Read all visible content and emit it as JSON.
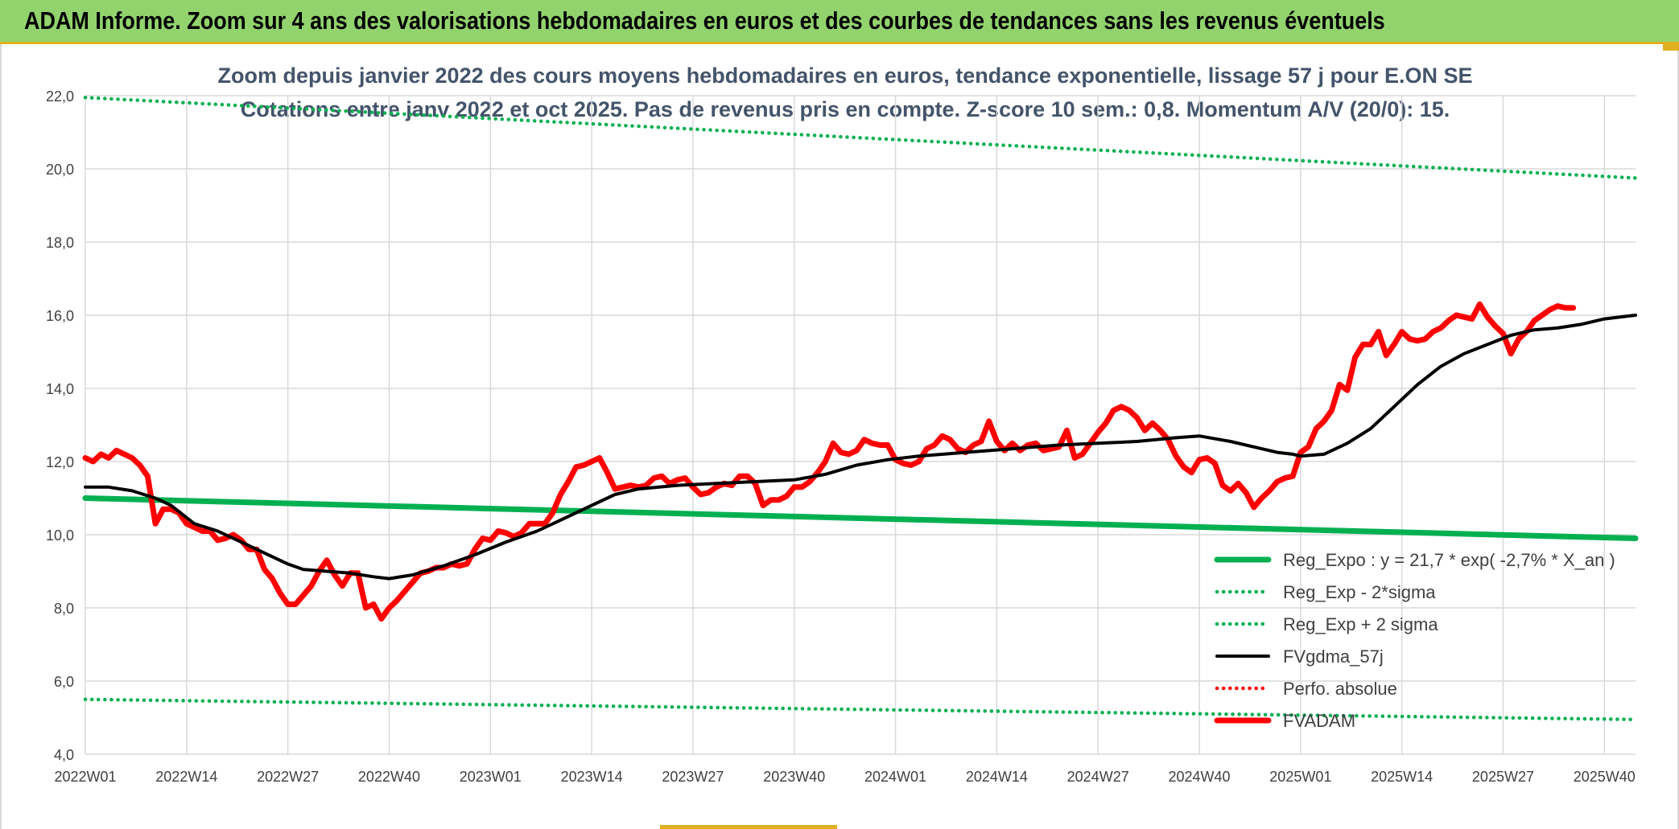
{
  "banner": {
    "title": "ADAM Informe. Zoom sur 4 ans des valorisations hebdomadaires en euros et des courbes de tendances sans les revenus éventuels"
  },
  "colors": {
    "banner_bg": "#92d36e",
    "green": "#00b050",
    "black": "#000000",
    "red": "#ff0000",
    "grid": "#d9d9d9"
  },
  "chart_data": {
    "type": "line",
    "title_line1": "Zoom depuis janvier 2022 des cours moyens hebdomadaires en euros, tendance exponentielle, lissage 57 j pour E.ON SE",
    "title_line2": "Cotations entre janv 2022 et oct 2025. Pas de revenus pris en compte. Z-score 10 sem.: 0,8. Momentum A/V (20/0): 15.",
    "ylim": [
      4,
      22
    ],
    "y_ticks": [
      "4,0",
      "6,0",
      "8,0",
      "10,0",
      "12,0",
      "14,0",
      "16,0",
      "18,0",
      "20,0",
      "22,0"
    ],
    "x_ticks": [
      "2022W01",
      "2022W14",
      "2022W27",
      "2022W40",
      "2023W01",
      "2023W14",
      "2023W27",
      "2023W40",
      "2024W01",
      "2024W14",
      "2024W27",
      "2024W40",
      "2025W01",
      "2025W14",
      "2025W27",
      "2025W40"
    ],
    "x_range": [
      "2022W01",
      "2025W44"
    ],
    "grid": true,
    "legend_position": "bottom-right",
    "series": [
      {
        "name": "Reg_Expo : y = 21,7 * exp( -2,7% *  X_an )",
        "style": "solid-thick",
        "color": "#00b050",
        "points": [
          [
            "2022W01",
            11.0
          ],
          [
            "2025W44",
            9.9
          ]
        ]
      },
      {
        "name": "Reg_Exp - 2*sigma",
        "style": "dotted",
        "color": "#00b050",
        "points": [
          [
            "2022W01",
            5.5
          ],
          [
            "2025W44",
            4.95
          ]
        ]
      },
      {
        "name": "Reg_Exp + 2 sigma",
        "style": "dotted",
        "color": "#00b050",
        "points": [
          [
            "2022W01",
            21.95
          ],
          [
            "2025W44",
            19.75
          ]
        ]
      },
      {
        "name": "FVgdma_57j",
        "style": "solid",
        "color": "#000000",
        "points": [
          [
            "2022W01",
            11.3
          ],
          [
            "2022W04",
            11.3
          ],
          [
            "2022W07",
            11.2
          ],
          [
            "2022W10",
            11.0
          ],
          [
            "2022W12",
            10.8
          ],
          [
            "2022W15",
            10.3
          ],
          [
            "2022W18",
            10.1
          ],
          [
            "2022W21",
            9.8
          ],
          [
            "2022W24",
            9.5
          ],
          [
            "2022W27",
            9.2
          ],
          [
            "2022W29",
            9.05
          ],
          [
            "2022W32",
            9.0
          ],
          [
            "2022W35",
            8.95
          ],
          [
            "2022W38",
            8.85
          ],
          [
            "2022W40",
            8.8
          ],
          [
            "2022W43",
            8.9
          ],
          [
            "2022W47",
            9.15
          ],
          [
            "2022W51",
            9.45
          ],
          [
            "2023W03",
            9.8
          ],
          [
            "2023W07",
            10.1
          ],
          [
            "2023W11",
            10.5
          ],
          [
            "2023W14",
            10.8
          ],
          [
            "2023W17",
            11.1
          ],
          [
            "2023W20",
            11.25
          ],
          [
            "2023W25",
            11.35
          ],
          [
            "2023W30",
            11.4
          ],
          [
            "2023W35",
            11.45
          ],
          [
            "2023W40",
            11.5
          ],
          [
            "2023W44",
            11.65
          ],
          [
            "2023W48",
            11.9
          ],
          [
            "2023W52",
            12.05
          ],
          [
            "2024W04",
            12.15
          ],
          [
            "2024W10",
            12.25
          ],
          [
            "2024W16",
            12.35
          ],
          [
            "2024W22",
            12.45
          ],
          [
            "2024W27",
            12.5
          ],
          [
            "2024W32",
            12.55
          ],
          [
            "2024W37",
            12.65
          ],
          [
            "2024W40",
            12.7
          ],
          [
            "2024W44",
            12.55
          ],
          [
            "2024W47",
            12.4
          ],
          [
            "2024W50",
            12.25
          ],
          [
            "2024W52",
            12.2
          ],
          [
            "2025W01",
            12.15
          ],
          [
            "2025W04",
            12.2
          ],
          [
            "2025W07",
            12.5
          ],
          [
            "2025W10",
            12.9
          ],
          [
            "2025W13",
            13.5
          ],
          [
            "2025W16",
            14.1
          ],
          [
            "2025W19",
            14.6
          ],
          [
            "2025W22",
            14.95
          ],
          [
            "2025W25",
            15.2
          ],
          [
            "2025W28",
            15.45
          ],
          [
            "2025W31",
            15.6
          ],
          [
            "2025W34",
            15.65
          ],
          [
            "2025W37",
            15.75
          ],
          [
            "2025W40",
            15.9
          ],
          [
            "2025W44",
            16.0
          ]
        ]
      },
      {
        "name": "Perfo. absolue",
        "style": "dotted",
        "color": "#ff0000",
        "points": []
      },
      {
        "name": "FVADAM",
        "style": "solid-thick",
        "color": "#ff0000",
        "points": [
          [
            "2022W01",
            12.1
          ],
          [
            "2022W02",
            12.0
          ],
          [
            "2022W03",
            12.2
          ],
          [
            "2022W04",
            12.1
          ],
          [
            "2022W05",
            12.3
          ],
          [
            "2022W06",
            12.2
          ],
          [
            "2022W07",
            12.1
          ],
          [
            "2022W08",
            11.9
          ],
          [
            "2022W09",
            11.6
          ],
          [
            "2022W10",
            10.3
          ],
          [
            "2022W11",
            10.7
          ],
          [
            "2022W12",
            10.7
          ],
          [
            "2022W13",
            10.6
          ],
          [
            "2022W14",
            10.3
          ],
          [
            "2022W15",
            10.2
          ],
          [
            "2022W16",
            10.1
          ],
          [
            "2022W17",
            10.1
          ],
          [
            "2022W18",
            9.85
          ],
          [
            "2022W19",
            9.9
          ],
          [
            "2022W20",
            10.0
          ],
          [
            "2022W21",
            9.85
          ],
          [
            "2022W22",
            9.6
          ],
          [
            "2022W23",
            9.6
          ],
          [
            "2022W24",
            9.05
          ],
          [
            "2022W25",
            8.8
          ],
          [
            "2022W26",
            8.4
          ],
          [
            "2022W27",
            8.1
          ],
          [
            "2022W28",
            8.1
          ],
          [
            "2022W29",
            8.35
          ],
          [
            "2022W30",
            8.6
          ],
          [
            "2022W31",
            9.0
          ],
          [
            "2022W32",
            9.3
          ],
          [
            "2022W33",
            8.9
          ],
          [
            "2022W34",
            8.6
          ],
          [
            "2022W35",
            8.95
          ],
          [
            "2022W36",
            8.95
          ],
          [
            "2022W37",
            8.0
          ],
          [
            "2022W38",
            8.1
          ],
          [
            "2022W39",
            7.7
          ],
          [
            "2022W40",
            8.0
          ],
          [
            "2022W41",
            8.2
          ],
          [
            "2022W42",
            8.45
          ],
          [
            "2022W43",
            8.7
          ],
          [
            "2022W44",
            8.95
          ],
          [
            "2022W45",
            9.0
          ],
          [
            "2022W46",
            9.1
          ],
          [
            "2022W47",
            9.1
          ],
          [
            "2022W48",
            9.2
          ],
          [
            "2022W49",
            9.15
          ],
          [
            "2022W50",
            9.2
          ],
          [
            "2022W51",
            9.6
          ],
          [
            "2022W52",
            9.9
          ],
          [
            "2023W01",
            9.85
          ],
          [
            "2023W02",
            10.1
          ],
          [
            "2023W03",
            10.05
          ],
          [
            "2023W04",
            9.95
          ],
          [
            "2023W05",
            10.05
          ],
          [
            "2023W06",
            10.3
          ],
          [
            "2023W07",
            10.3
          ],
          [
            "2023W08",
            10.3
          ],
          [
            "2023W09",
            10.6
          ],
          [
            "2023W10",
            11.1
          ],
          [
            "2023W11",
            11.45
          ],
          [
            "2023W12",
            11.85
          ],
          [
            "2023W13",
            11.9
          ],
          [
            "2023W14",
            12.0
          ],
          [
            "2023W15",
            12.1
          ],
          [
            "2023W16",
            11.7
          ],
          [
            "2023W17",
            11.25
          ],
          [
            "2023W18",
            11.3
          ],
          [
            "2023W19",
            11.35
          ],
          [
            "2023W20",
            11.3
          ],
          [
            "2023W21",
            11.35
          ],
          [
            "2023W22",
            11.55
          ],
          [
            "2023W23",
            11.6
          ],
          [
            "2023W24",
            11.4
          ],
          [
            "2023W25",
            11.5
          ],
          [
            "2023W26",
            11.55
          ],
          [
            "2023W27",
            11.3
          ],
          [
            "2023W28",
            11.1
          ],
          [
            "2023W29",
            11.15
          ],
          [
            "2023W30",
            11.3
          ],
          [
            "2023W31",
            11.4
          ],
          [
            "2023W32",
            11.35
          ],
          [
            "2023W33",
            11.6
          ],
          [
            "2023W34",
            11.6
          ],
          [
            "2023W35",
            11.4
          ],
          [
            "2023W36",
            10.8
          ],
          [
            "2023W37",
            10.95
          ],
          [
            "2023W38",
            10.95
          ],
          [
            "2023W39",
            11.05
          ],
          [
            "2023W40",
            11.3
          ],
          [
            "2023W41",
            11.3
          ],
          [
            "2023W42",
            11.45
          ],
          [
            "2023W43",
            11.7
          ],
          [
            "2023W44",
            12.0
          ],
          [
            "2023W45",
            12.5
          ],
          [
            "2023W46",
            12.25
          ],
          [
            "2023W47",
            12.2
          ],
          [
            "2023W48",
            12.3
          ],
          [
            "2023W49",
            12.6
          ],
          [
            "2023W50",
            12.5
          ],
          [
            "2023W51",
            12.45
          ],
          [
            "2023W52",
            12.45
          ],
          [
            "2024W01",
            12.05
          ],
          [
            "2024W02",
            11.95
          ],
          [
            "2024W03",
            11.9
          ],
          [
            "2024W04",
            12.0
          ],
          [
            "2024W05",
            12.35
          ],
          [
            "2024W06",
            12.45
          ],
          [
            "2024W07",
            12.7
          ],
          [
            "2024W08",
            12.6
          ],
          [
            "2024W09",
            12.35
          ],
          [
            "2024W10",
            12.25
          ],
          [
            "2024W11",
            12.45
          ],
          [
            "2024W12",
            12.55
          ],
          [
            "2024W13",
            13.1
          ],
          [
            "2024W14",
            12.55
          ],
          [
            "2024W15",
            12.3
          ],
          [
            "2024W16",
            12.5
          ],
          [
            "2024W17",
            12.3
          ],
          [
            "2024W18",
            12.45
          ],
          [
            "2024W19",
            12.5
          ],
          [
            "2024W20",
            12.3
          ],
          [
            "2024W21",
            12.35
          ],
          [
            "2024W22",
            12.4
          ],
          [
            "2024W23",
            12.85
          ],
          [
            "2024W24",
            12.1
          ],
          [
            "2024W25",
            12.2
          ],
          [
            "2024W26",
            12.5
          ],
          [
            "2024W27",
            12.8
          ],
          [
            "2024W28",
            13.05
          ],
          [
            "2024W29",
            13.4
          ],
          [
            "2024W30",
            13.5
          ],
          [
            "2024W31",
            13.4
          ],
          [
            "2024W32",
            13.2
          ],
          [
            "2024W33",
            12.85
          ],
          [
            "2024W34",
            13.05
          ],
          [
            "2024W35",
            12.85
          ],
          [
            "2024W36",
            12.6
          ],
          [
            "2024W37",
            12.15
          ],
          [
            "2024W38",
            11.85
          ],
          [
            "2024W39",
            11.7
          ],
          [
            "2024W40",
            12.05
          ],
          [
            "2024W41",
            12.1
          ],
          [
            "2024W42",
            11.95
          ],
          [
            "2024W43",
            11.35
          ],
          [
            "2024W44",
            11.2
          ],
          [
            "2024W45",
            11.4
          ],
          [
            "2024W46",
            11.15
          ],
          [
            "2024W47",
            10.75
          ],
          [
            "2024W48",
            11.0
          ],
          [
            "2024W49",
            11.2
          ],
          [
            "2024W50",
            11.45
          ],
          [
            "2024W51",
            11.55
          ],
          [
            "2024W52",
            11.6
          ],
          [
            "2025W01",
            12.25
          ],
          [
            "2025W02",
            12.4
          ],
          [
            "2025W03",
            12.9
          ],
          [
            "2025W04",
            13.1
          ],
          [
            "2025W05",
            13.4
          ],
          [
            "2025W06",
            14.1
          ],
          [
            "2025W07",
            13.95
          ],
          [
            "2025W08",
            14.85
          ],
          [
            "2025W09",
            15.2
          ],
          [
            "2025W10",
            15.2
          ],
          [
            "2025W11",
            15.55
          ],
          [
            "2025W12",
            14.9
          ],
          [
            "2025W13",
            15.2
          ],
          [
            "2025W14",
            15.55
          ],
          [
            "2025W15",
            15.35
          ],
          [
            "2025W16",
            15.3
          ],
          [
            "2025W17",
            15.35
          ],
          [
            "2025W18",
            15.55
          ],
          [
            "2025W19",
            15.65
          ],
          [
            "2025W20",
            15.85
          ],
          [
            "2025W21",
            16.0
          ],
          [
            "2025W22",
            15.95
          ],
          [
            "2025W23",
            15.9
          ],
          [
            "2025W24",
            16.3
          ],
          [
            "2025W25",
            15.95
          ],
          [
            "2025W26",
            15.7
          ],
          [
            "2025W27",
            15.5
          ],
          [
            "2025W28",
            14.95
          ],
          [
            "2025W29",
            15.35
          ],
          [
            "2025W30",
            15.55
          ],
          [
            "2025W31",
            15.85
          ],
          [
            "2025W32",
            16.0
          ],
          [
            "2025W33",
            16.15
          ],
          [
            "2025W34",
            16.25
          ],
          [
            "2025W35",
            16.2
          ],
          [
            "2025W36",
            16.2
          ]
        ]
      }
    ]
  }
}
